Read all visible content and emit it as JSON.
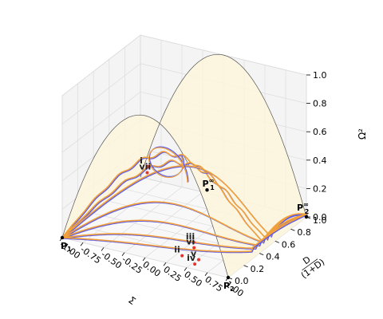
{
  "chart_data": {
    "type": "line3d",
    "axes": {
      "x": {
        "label": "Σ",
        "range": [
          -1.0,
          1.0
        ],
        "ticks": [
          "-1.00",
          "-0.75",
          "-0.50",
          "-0.25",
          "0.00",
          "0.25",
          "0.50",
          "0.75",
          "1.00"
        ]
      },
      "y": {
        "label": "D/(1+D)",
        "label_num": "D",
        "label_den": "(1+D)",
        "range": [
          0.0,
          1.0
        ],
        "ticks": [
          "0.0",
          "0.2",
          "0.4",
          "0.6",
          "0.8",
          "1.0"
        ]
      },
      "z": {
        "label": "Ω²",
        "range": [
          0.0,
          1.0
        ],
        "ticks": [
          "0.0",
          "0.2",
          "0.4",
          "0.6",
          "0.8",
          "1.0"
        ]
      }
    },
    "surface": {
      "description_only": false,
      "z_of": "1 - x^2",
      "color": "#fdf6dc"
    },
    "boundary_curves": [
      {
        "plane": "y=0",
        "z_of": "1 - x^2"
      },
      {
        "plane": "y=1",
        "z_of": "1 - x^2"
      }
    ],
    "points": [
      {
        "name": "P",
        "sub": "1",
        "sup": "",
        "x": -1.0,
        "y": 0.0,
        "z": 0.0
      },
      {
        "name": "P",
        "sub": "2",
        "sup": "",
        "x": 1.0,
        "y": 0.0,
        "z": 0.0
      },
      {
        "name": "P",
        "sub": "1",
        "sup": "∞",
        "x": -0.15,
        "y": 0.95,
        "z": 0.05
      },
      {
        "name": "P",
        "sub": "2",
        "sup": "∞",
        "x": 1.0,
        "y": 1.0,
        "z": 0.0
      }
    ],
    "markers": [
      {
        "label": "i",
        "x": -0.3,
        "y": 0.35,
        "z": 0.45
      },
      {
        "label": "vii",
        "x": -0.4,
        "y": 0.45,
        "z": 0.35
      },
      {
        "label": "iii",
        "x": 0.35,
        "y": 0.25,
        "z": 0.05
      },
      {
        "label": "vi",
        "x": 0.4,
        "y": 0.2,
        "z": 0.04
      },
      {
        "label": "ii",
        "x": 0.35,
        "y": 0.1,
        "z": 0.02
      },
      {
        "label": "v",
        "x": 0.55,
        "y": 0.1,
        "z": 0.02
      },
      {
        "label": "iv",
        "x": 0.55,
        "y": 0.05,
        "z": 0.01
      }
    ],
    "series_colors": {
      "blue": "#5a5aee",
      "orange": "#f2a03a",
      "marker": "#e8322a"
    }
  }
}
